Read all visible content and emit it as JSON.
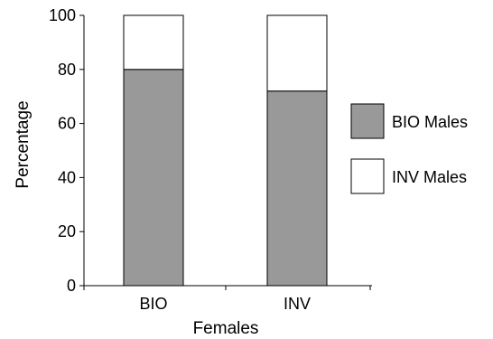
{
  "chart_data": {
    "type": "bar",
    "stacked": true,
    "categories": [
      "BIO",
      "INV"
    ],
    "series": [
      {
        "name": "BIO Males",
        "values": [
          80,
          72
        ],
        "color": "#999999"
      },
      {
        "name": "INV Males",
        "values": [
          20,
          28
        ],
        "color": "#ffffff"
      }
    ],
    "title": "",
    "xlabel": "Females",
    "ylabel": "Percentage",
    "ylim": [
      0,
      100
    ],
    "yticks": [
      0,
      20,
      40,
      60,
      80,
      100
    ],
    "grid": false,
    "legend": "right"
  }
}
